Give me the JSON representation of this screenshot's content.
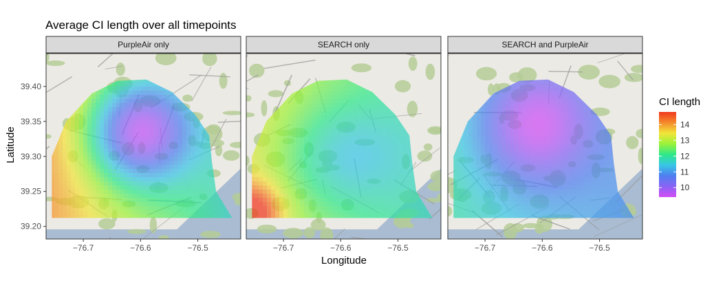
{
  "chart_data": {
    "type": "heatmap",
    "title": "Average CI length over all timepoints",
    "xlabel": "Longitude",
    "ylabel": "Latitude",
    "xlim": [
      -76.765,
      -76.425
    ],
    "ylim": [
      39.182,
      39.447
    ],
    "x_ticks": [
      -76.7,
      -76.6,
      -76.5
    ],
    "x_tick_labels": [
      "−76.7",
      "−76.6",
      "−76.5"
    ],
    "y_ticks": [
      39.2,
      39.25,
      39.3,
      39.35,
      39.4
    ],
    "y_tick_labels": [
      "39.20",
      "39.25",
      "39.30",
      "39.35",
      "39.40"
    ],
    "panels": [
      {
        "label": "PurpleAir only",
        "centers": [
          {
            "lon": -76.605,
            "lat": 39.335,
            "min": 9.6,
            "sx": 0.09,
            "sy": 0.075
          }
        ],
        "base": 12.9,
        "gradient": {
          "x": -1.5,
          "y": 0.0
        }
      },
      {
        "label": "SEARCH only",
        "centers": [
          {
            "lon": -76.6,
            "lat": 39.3,
            "min": 11.5,
            "sx": 0.11,
            "sy": 0.08
          }
        ],
        "base": 12.6,
        "gradient": {
          "x": -1.0,
          "y": 0.0
        },
        "hotspot": {
          "lon": -76.755,
          "lat": 39.22,
          "max": 14.6,
          "sx": 0.05,
          "sy": 0.04
        }
      },
      {
        "label": "SEARCH and PurpleAir",
        "centers": [
          {
            "lon": -76.615,
            "lat": 39.345,
            "min": 9.4,
            "sx": 0.1,
            "sy": 0.085
          }
        ],
        "base": 11.4,
        "gradient": {
          "x": -0.6,
          "y": 0.0
        }
      }
    ],
    "legend": {
      "title": "CI length",
      "ticks": [
        10,
        11,
        12,
        13,
        14
      ],
      "range": [
        9.4,
        14.8
      ],
      "placement": "right"
    },
    "colorscale": [
      "#d24cf5",
      "#8a63f5",
      "#4f7ff0",
      "#38c6e6",
      "#2ee88a",
      "#9af23a",
      "#f2e53a",
      "#f58a2c",
      "#f0381e"
    ]
  }
}
